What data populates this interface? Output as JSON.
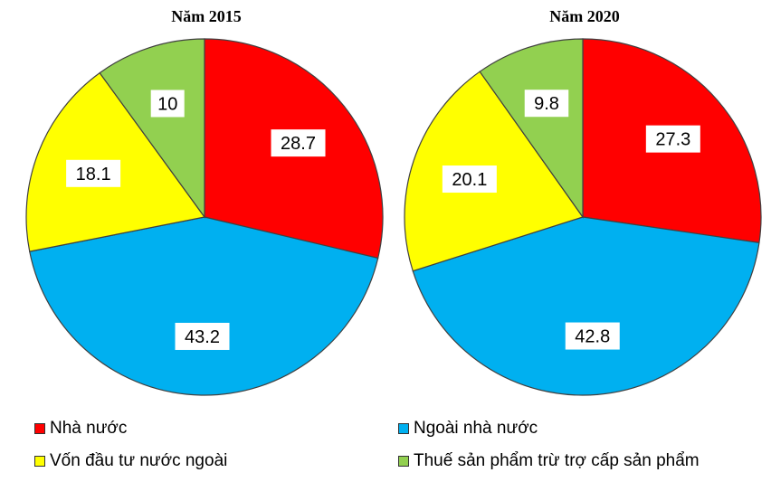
{
  "chart_data": [
    {
      "type": "pie",
      "title": "Năm 2015",
      "categories": [
        "Nhà nước",
        "Ngoài nhà nước",
        "Vốn đầu tư nước ngoài",
        "Thuế sản phẩm trừ trợ cấp sản phẩm"
      ],
      "values": [
        28.7,
        43.2,
        18.1,
        10
      ],
      "value_labels": [
        "28.7",
        "43.2",
        "18.1",
        "10"
      ]
    },
    {
      "type": "pie",
      "title": "Năm 2020",
      "categories": [
        "Nhà nước",
        "Ngoài nhà nước",
        "Vốn đầu tư nước ngoài",
        "Thuế sản phẩm trừ trợ cấp sản phẩm"
      ],
      "values": [
        27.3,
        42.8,
        20.1,
        9.8
      ],
      "value_labels": [
        "27.3",
        "42.8",
        "20.1",
        "9.8"
      ]
    }
  ],
  "colors": [
    "#ff0000",
    "#00b0f0",
    "#ffff00",
    "#92d050"
  ],
  "legend": {
    "items": [
      {
        "label": "Nhà nước",
        "color": "#ff0000"
      },
      {
        "label": "Ngoài nhà nước",
        "color": "#00b0f0"
      },
      {
        "label": "Vốn đầu tư nước ngoài",
        "color": "#ffff00"
      },
      {
        "label": "Thuế sản phẩm trừ trợ cấp sản phẩm",
        "color": "#92d050"
      }
    ]
  }
}
